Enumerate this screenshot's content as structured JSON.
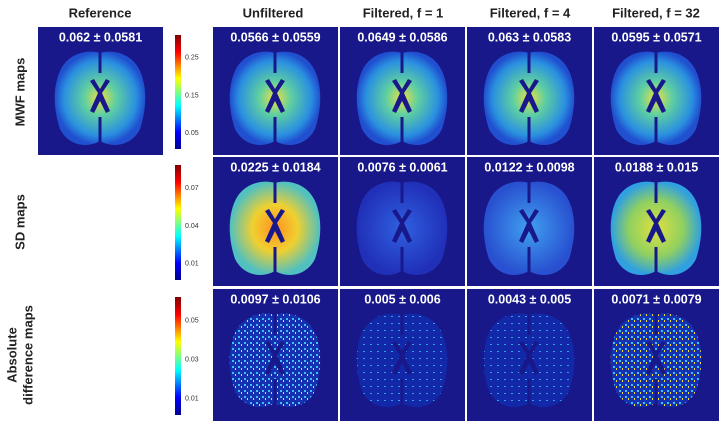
{
  "columns": [
    "Reference",
    "Unfiltered",
    "Filtered, f = 1",
    "Filtered, f = 4",
    "Filtered, f = 32"
  ],
  "rows": [
    {
      "label": [
        "MWF maps"
      ],
      "colorbar_ticks": [
        "0.25",
        "0.15",
        "0.05"
      ],
      "stats": [
        "0.062 ± 0.0581",
        "0.0566 ± 0.0559",
        "0.0649 ± 0.0586",
        "0.063 ± 0.0583",
        "0.0595 ± 0.0571"
      ]
    },
    {
      "label": [
        "SD maps"
      ],
      "colorbar_ticks": [
        "0.07",
        "0.04",
        "0.01"
      ],
      "stats": [
        "0.0225 ± 0.0184",
        "0.0076 ± 0.0061",
        "0.0122 ± 0.0098",
        "0.0188 ± 0.015"
      ]
    },
    {
      "label": [
        "Absolute",
        "difference maps"
      ],
      "colorbar_ticks": [
        "0.05",
        "0.03",
        "0.01"
      ],
      "stats": [
        "0.0097 ± 0.0106",
        "0.005 ± 0.006",
        "0.0043 ± 0.005",
        "0.0071 ± 0.0079"
      ]
    }
  ]
}
